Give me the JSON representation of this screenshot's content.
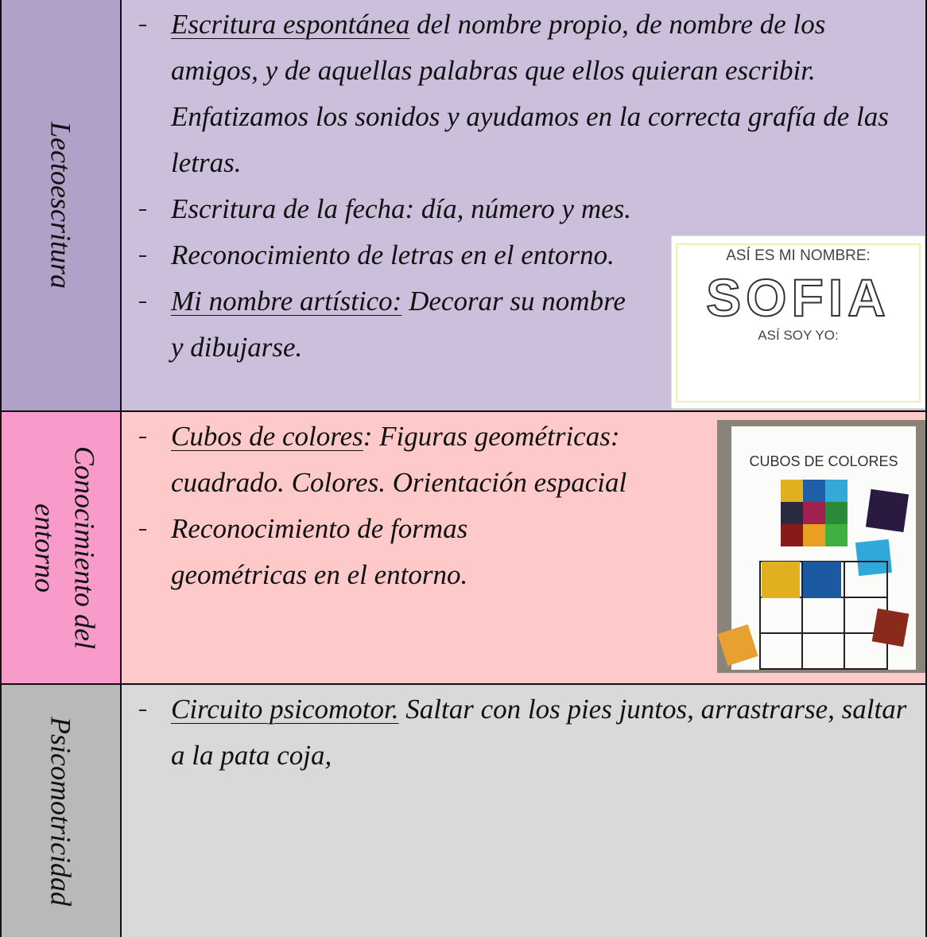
{
  "table": {
    "rows": [
      {
        "header": "Lectoescritura",
        "items": [
          {
            "emphasis": "Escritura espontánea",
            "text": " del nombre propio, de nombre de los amigos, y de aquellas palabras que ellos quieran escribir. Enfatizamos los sonidos y ayudamos en la correcta grafía de las letras."
          },
          {
            "text": "Escritura de la fecha: día, número y mes."
          },
          {
            "text": "Reconocimiento de letras en el entorno."
          },
          {
            "emphasis": "Mi nombre artístico:",
            "text": " Decorar su nombre y dibujarse."
          }
        ],
        "image": {
          "title": "ASÍ ES MI NOMBRE:",
          "name": "SOFIA",
          "caption": "ASÍ SOY YO:"
        }
      },
      {
        "header": "Conocimiento del entorno",
        "items": [
          {
            "emphasis": "Cubos de colores",
            "text": ": Figuras geométricas: cuadrado. Colores. Orientación espacial"
          },
          {
            "text": "Reconocimiento de formas geométricas en el entorno."
          }
        ],
        "image": {
          "title": "CUBOS DE COLORES"
        }
      },
      {
        "header": "Psicomotricidad",
        "items": [
          {
            "emphasis": "Circuito psicomotor.",
            "text": " Saltar con los pies juntos, arrastrarse, saltar a la pata coja,"
          }
        ]
      }
    ]
  }
}
